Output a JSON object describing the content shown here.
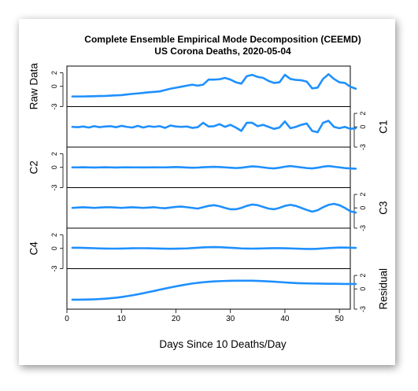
{
  "chart_data": {
    "type": "line",
    "title": "Complete Ensemble Empirical Mode Decomposition (CEEMD)",
    "subtitle": "US Corona Deaths, 2020-05-04",
    "xlabel": "Days Since 10 Deaths/Day",
    "xlim": [
      0,
      52
    ],
    "x_ticks": [
      "0",
      "10",
      "20",
      "30",
      "40",
      "50"
    ],
    "y_ticks": [
      "2",
      "0",
      "-3"
    ],
    "series_color": "#1E90FF",
    "panels": [
      {
        "name": "Raw Data",
        "label_side": "left",
        "ylim": [
          -3,
          3
        ],
        "values": [
          -1.5,
          -1.5,
          -1.5,
          -1.48,
          -1.46,
          -1.44,
          -1.42,
          -1.38,
          -1.33,
          -1.3,
          -1.2,
          -1.12,
          -1.05,
          -0.97,
          -0.88,
          -0.82,
          -0.75,
          -0.55,
          -0.35,
          -0.2,
          -0.05,
          0.1,
          0.25,
          0.1,
          0.25,
          1.0,
          1.0,
          1.05,
          1.25,
          1.0,
          0.6,
          0.4,
          1.5,
          1.7,
          1.4,
          1.25,
          0.8,
          0.5,
          0.6,
          1.7,
          1.1,
          0.95,
          0.9,
          0.7,
          -0.3,
          -0.2,
          1.1,
          1.8,
          1.1,
          0.6,
          0.5,
          -0.05,
          -0.35
        ]
      },
      {
        "name": "C1",
        "label_side": "right",
        "ylim": [
          -3,
          3
        ],
        "values": [
          0.0,
          -0.05,
          0.05,
          -0.1,
          0.1,
          -0.05,
          0.05,
          0.1,
          -0.05,
          0.15,
          0.0,
          -0.1,
          0.15,
          -0.1,
          0.1,
          0.0,
          0.1,
          -0.15,
          0.2,
          0.05,
          0.0,
          0.05,
          -0.15,
          -0.05,
          0.6,
          0.05,
          0.1,
          0.4,
          0.0,
          0.3,
          -0.1,
          -0.6,
          0.6,
          0.6,
          0.1,
          0.3,
          0.0,
          -0.3,
          -0.1,
          0.8,
          -0.2,
          0.0,
          0.3,
          0.5,
          -0.6,
          -0.8,
          0.6,
          0.9,
          0.0,
          -0.2,
          0.0,
          -0.3,
          -0.2
        ]
      },
      {
        "name": "C2",
        "label_side": "left",
        "ylim": [
          -3,
          3
        ],
        "values": [
          0.0,
          0.0,
          0.02,
          0.0,
          -0.02,
          0.0,
          0.02,
          0.0,
          -0.02,
          0.0,
          0.01,
          0.0,
          0.0,
          -0.01,
          0.0,
          0.01,
          0.0,
          0.0,
          0.02,
          0.05,
          0.02,
          -0.02,
          -0.05,
          -0.03,
          0.02,
          0.05,
          0.08,
          0.05,
          0.0,
          -0.05,
          -0.1,
          -0.05,
          0.05,
          0.15,
          0.1,
          0.0,
          -0.1,
          -0.15,
          -0.05,
          0.1,
          0.2,
          0.1,
          0.0,
          -0.1,
          -0.15,
          -0.05,
          0.1,
          0.2,
          0.1,
          0.0,
          -0.1,
          -0.15,
          -0.2
        ]
      },
      {
        "name": "C3",
        "label_side": "right",
        "ylim": [
          -3,
          3
        ],
        "values": [
          0.0,
          0.05,
          0.1,
          0.05,
          0.0,
          0.05,
          0.1,
          0.1,
          0.05,
          0.0,
          0.05,
          0.1,
          0.05,
          0.0,
          0.05,
          0.1,
          0.0,
          -0.05,
          0.05,
          0.15,
          0.2,
          0.1,
          0.0,
          -0.1,
          0.1,
          0.3,
          0.4,
          0.25,
          0.0,
          -0.2,
          -0.2,
          0.0,
          0.3,
          0.5,
          0.4,
          0.15,
          -0.1,
          -0.2,
          0.0,
          0.3,
          0.45,
          0.3,
          0.0,
          -0.3,
          -0.55,
          -0.35,
          0.1,
          0.45,
          0.6,
          0.4,
          0.0,
          -0.5,
          -0.7
        ]
      },
      {
        "name": "C4",
        "label_side": "left",
        "ylim": [
          -3,
          3
        ],
        "values": [
          0.1,
          0.1,
          0.08,
          0.05,
          0.03,
          0.0,
          -0.02,
          -0.03,
          -0.03,
          -0.02,
          0.0,
          0.02,
          0.03,
          0.03,
          0.02,
          0.0,
          -0.02,
          -0.04,
          -0.05,
          -0.04,
          -0.02,
          0.0,
          0.05,
          0.1,
          0.15,
          0.18,
          0.2,
          0.18,
          0.14,
          0.1,
          0.05,
          0.0,
          -0.02,
          -0.03,
          -0.02,
          0.0,
          0.02,
          0.04,
          0.04,
          0.02,
          0.0,
          -0.03,
          -0.06,
          -0.08,
          -0.08,
          -0.05,
          0.0,
          0.05,
          0.1,
          0.12,
          0.12,
          0.1,
          0.08
        ]
      },
      {
        "name": "Residual",
        "label_side": "right",
        "ylim": [
          -3,
          3
        ],
        "values": [
          -1.6,
          -1.6,
          -1.58,
          -1.56,
          -1.54,
          -1.5,
          -1.45,
          -1.38,
          -1.3,
          -1.2,
          -1.08,
          -0.95,
          -0.8,
          -0.64,
          -0.47,
          -0.3,
          -0.12,
          0.05,
          0.22,
          0.38,
          0.53,
          0.67,
          0.8,
          0.9,
          0.99,
          1.06,
          1.11,
          1.15,
          1.18,
          1.2,
          1.21,
          1.22,
          1.22,
          1.21,
          1.19,
          1.16,
          1.12,
          1.07,
          1.02,
          0.96,
          0.91,
          0.87,
          0.84,
          0.82,
          0.8,
          0.79,
          0.78,
          0.77,
          0.76,
          0.75,
          0.74,
          0.74,
          0.74
        ]
      }
    ]
  }
}
